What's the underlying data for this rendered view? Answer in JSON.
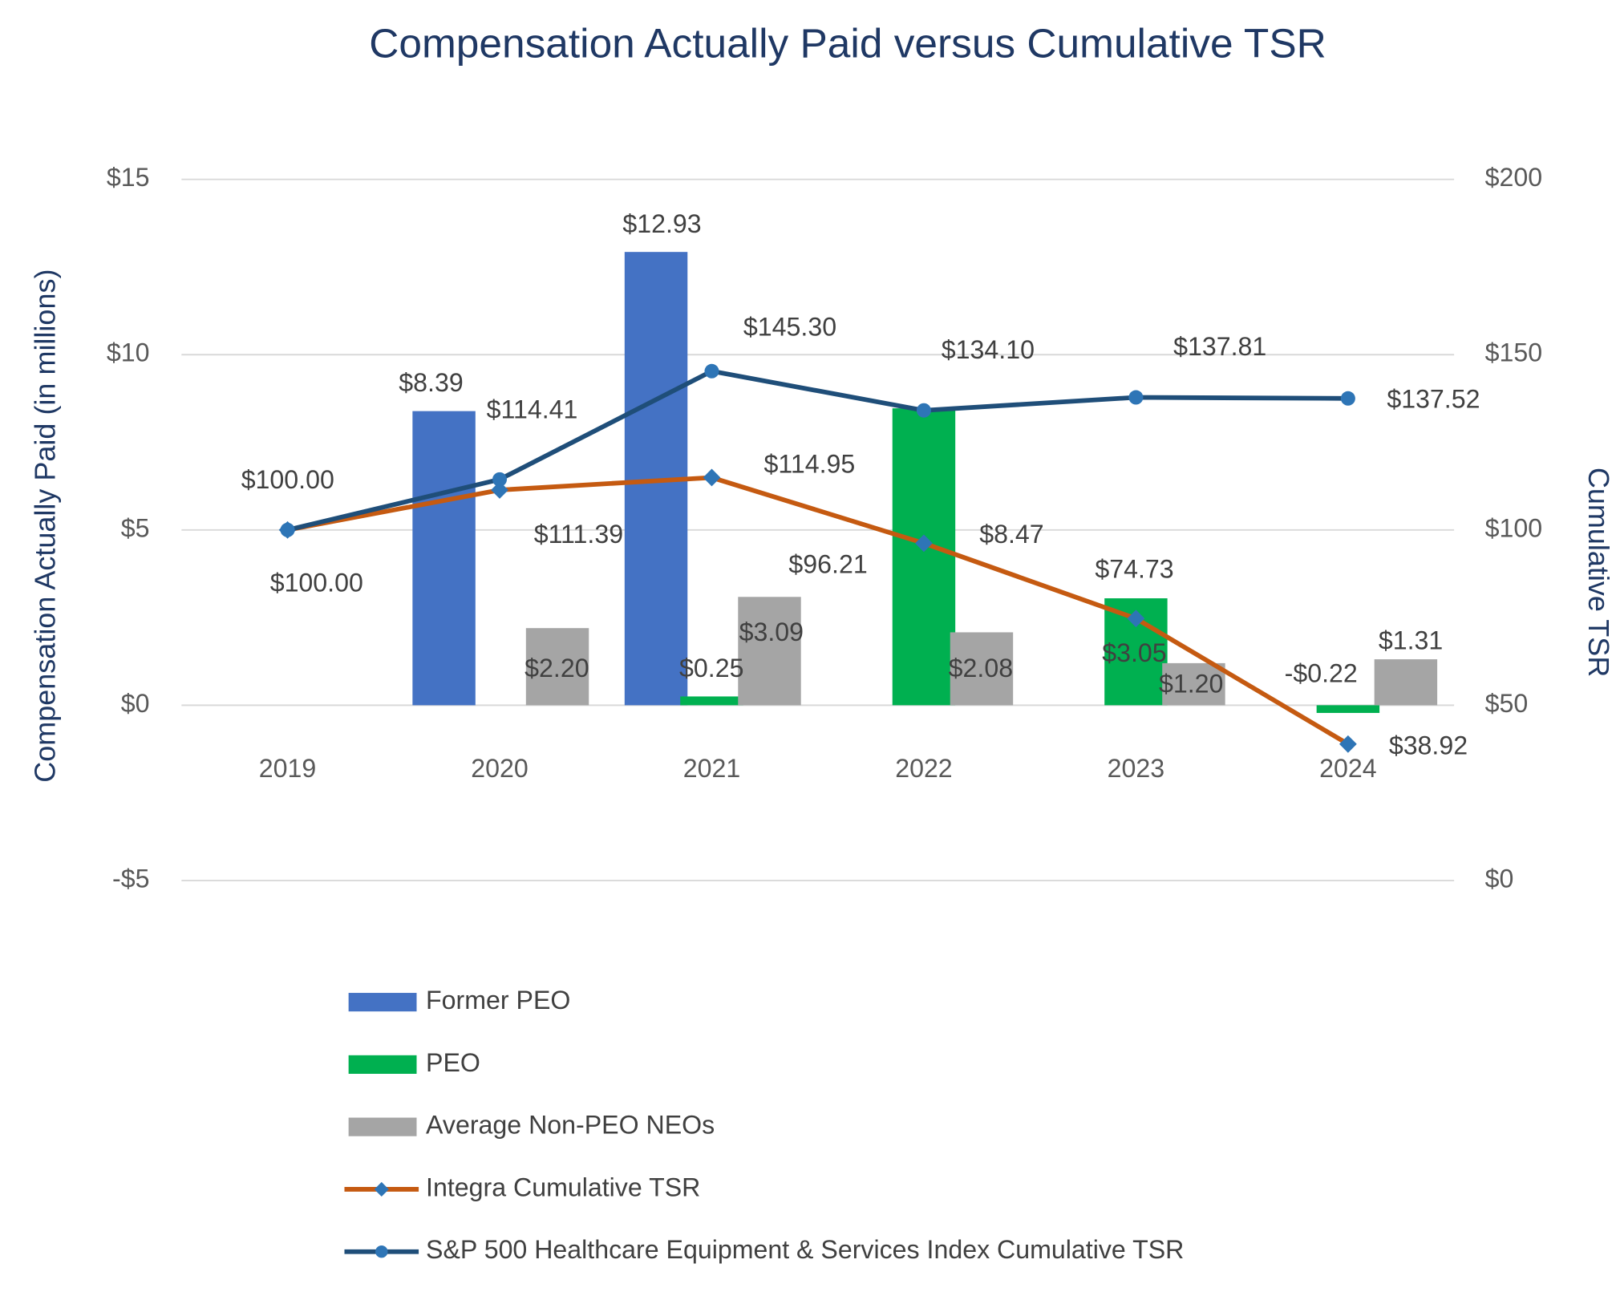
{
  "chart_data": {
    "type": "bar",
    "title": "Compensation Actually Paid versus Cumulative TSR",
    "y_label": "Compensation Actually Paid (in millions)",
    "y2_label": "Cumulative TSR",
    "categories": [
      "2019",
      "2020",
      "2021",
      "2022",
      "2023",
      "2024"
    ],
    "ylim": [
      -5,
      15
    ],
    "yticks": [
      {
        "value": -5,
        "label": "-$5"
      },
      {
        "value": 0,
        "label": "$0"
      },
      {
        "value": 5,
        "label": "$5"
      },
      {
        "value": 10,
        "label": "$10"
      },
      {
        "value": 15,
        "label": "$15"
      }
    ],
    "y2lim": [
      0,
      200
    ],
    "y2ticks": [
      {
        "value": 0,
        "label": "$0"
      },
      {
        "value": 50,
        "label": "$50"
      },
      {
        "value": 100,
        "label": "$100"
      },
      {
        "value": 150,
        "label": "$150"
      },
      {
        "value": 200,
        "label": "$200"
      }
    ],
    "grid": true,
    "legend": "bottom",
    "series": [
      {
        "name": "Former PEO",
        "type": "bar",
        "color": "#4472c4",
        "values": [
          null,
          8.39,
          12.93,
          null,
          null,
          null
        ],
        "value_labels": [
          null,
          "$8.39",
          "$12.93",
          null,
          null,
          null
        ]
      },
      {
        "name": "PEO",
        "type": "bar",
        "color": "#00b050",
        "values": [
          null,
          null,
          0.25,
          8.47,
          3.05,
          -0.22
        ],
        "value_labels": [
          null,
          null,
          "$0.25",
          "$8.47",
          "$3.05",
          "-$0.22"
        ]
      },
      {
        "name": "Average Non-PEO NEOs",
        "type": "bar",
        "color": "#a5a5a5",
        "values": [
          null,
          2.2,
          3.09,
          2.08,
          1.2,
          1.31
        ],
        "value_labels": [
          null,
          "$2.20",
          "$3.09",
          "$2.08",
          "$1.20",
          "$1.31"
        ]
      },
      {
        "name": "Integra Cumulative TSR",
        "type": "line",
        "axis": "y2",
        "color": "#c55a11",
        "marker_color": "#2e75b6",
        "values": [
          100.0,
          111.39,
          114.95,
          96.21,
          74.73,
          38.92
        ],
        "value_labels": [
          "$100.00",
          "$111.39",
          "$114.95",
          "$96.21",
          "$74.73",
          "$38.92"
        ]
      },
      {
        "name": "S&P 500 Healthcare Equipment & Services Index Cumulative TSR",
        "type": "line",
        "axis": "y2",
        "color": "#1f4e79",
        "marker_color": "#2e75b6",
        "values": [
          100.0,
          114.41,
          145.3,
          134.1,
          137.81,
          137.52
        ],
        "value_labels": [
          "$100.00",
          "$114.41",
          "$145.30",
          "$134.10",
          "$137.81",
          "$137.52"
        ]
      }
    ]
  }
}
